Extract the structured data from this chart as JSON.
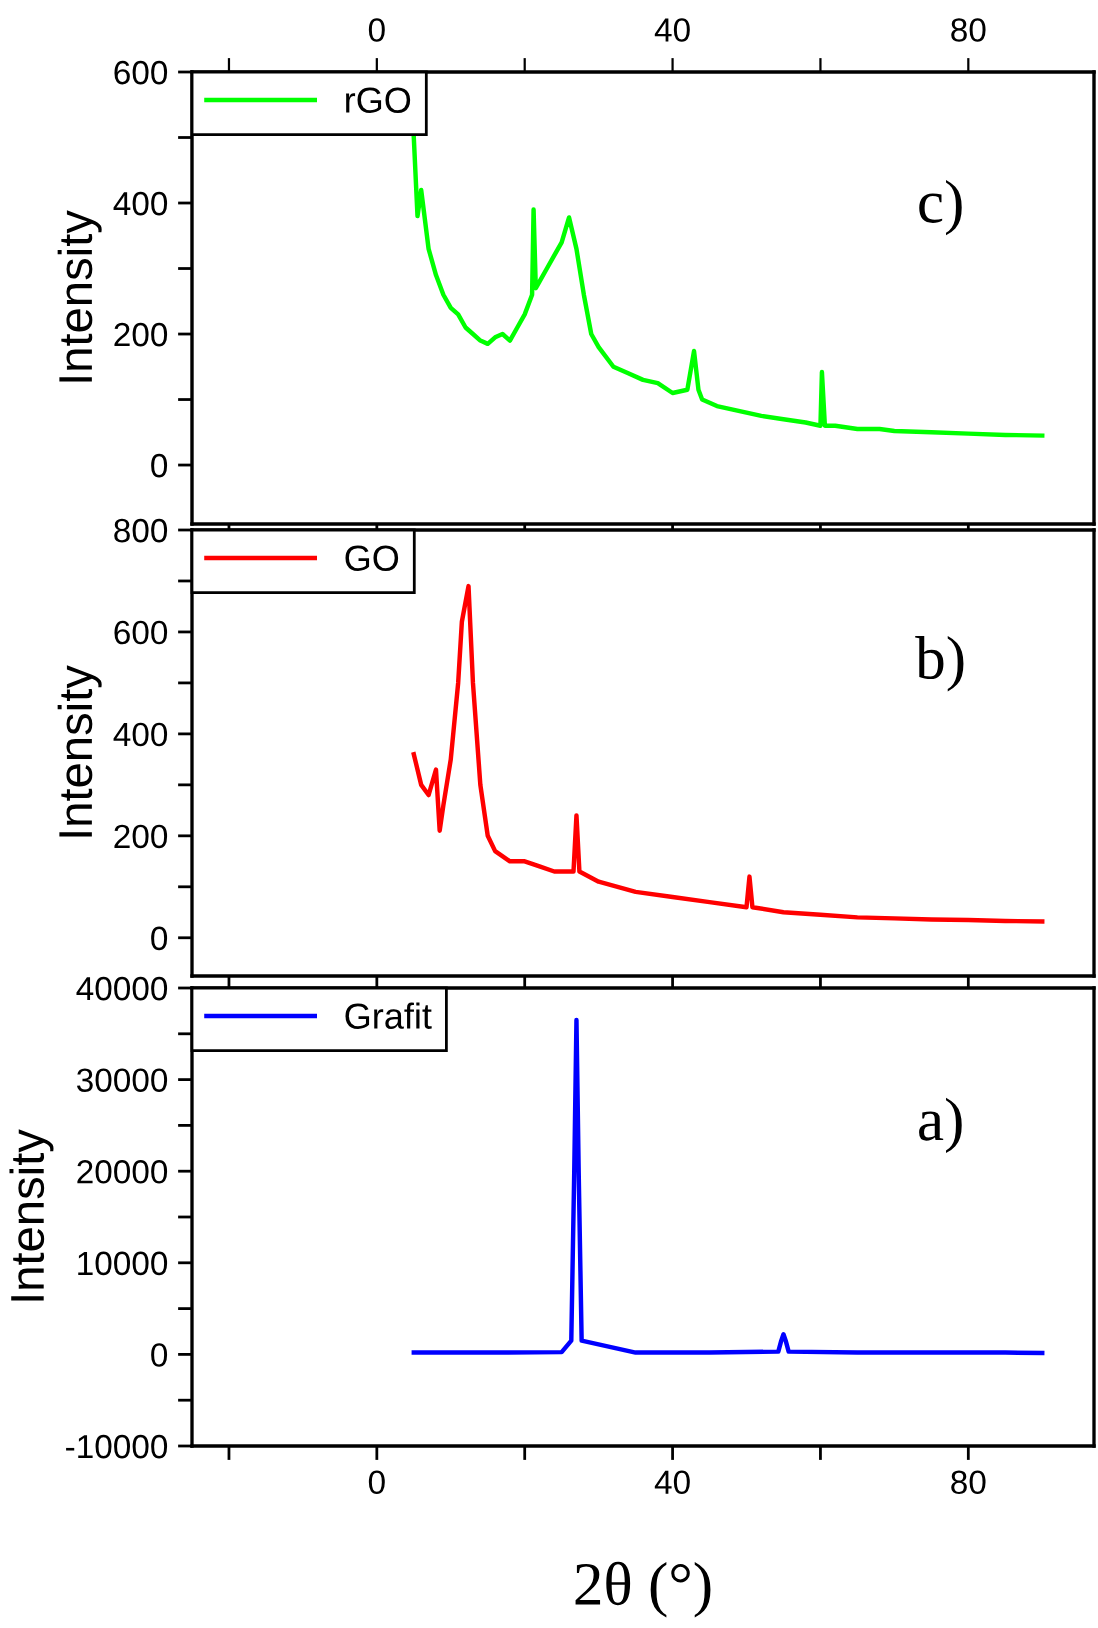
{
  "chart_data": [
    {
      "type": "line",
      "ylabel": "Intensity",
      "annotations": [
        "c)"
      ],
      "legend": "top left",
      "grid": false,
      "tick_labels": "y",
      "xlim": [
        -25,
        97
      ],
      "xticks": [
        {
          "value": -20,
          "label": null
        },
        0,
        {
          "value": 20,
          "label": null
        },
        40,
        {
          "value": 60,
          "label": null
        },
        80
      ],
      "x2lim": [
        -25,
        97
      ],
      "x2ticks": [
        {
          "value": -20,
          "label": null
        },
        0,
        {
          "value": 20,
          "label": null
        },
        40,
        {
          "value": 60,
          "label": null
        },
        80
      ],
      "ylim": [
        -90,
        600
      ],
      "yticks": [
        0,
        {
          "value": 100,
          "label": null
        },
        200,
        {
          "value": 300,
          "label": null
        },
        400,
        {
          "value": 500,
          "label": null
        },
        600
      ],
      "series": [
        {
          "name": "rGO",
          "color": "#00ff00",
          "x": [
            5,
            5.5,
            6,
            7,
            8,
            9,
            10,
            11,
            12,
            13,
            14,
            15,
            16,
            17,
            18,
            19,
            20,
            21,
            21.2,
            21.5,
            22,
            23,
            24,
            25,
            26,
            27,
            28,
            29,
            30,
            32,
            34,
            36,
            38,
            40,
            42,
            42.9,
            43.5,
            44,
            46,
            48,
            50,
            52,
            55,
            58,
            60,
            60.2,
            60.6,
            62,
            65,
            68,
            70,
            75,
            80,
            85,
            90
          ],
          "values": [
            500,
            380,
            420,
            330,
            290,
            260,
            240,
            230,
            210,
            200,
            190,
            185,
            195,
            200,
            190,
            210,
            230,
            260,
            390,
            270,
            280,
            300,
            320,
            340,
            378,
            330,
            260,
            200,
            180,
            150,
            140,
            130,
            125,
            110,
            115,
            174,
            115,
            100,
            90,
            85,
            80,
            75,
            70,
            65,
            60,
            142,
            60,
            60,
            55,
            55,
            52,
            50,
            48,
            46,
            45
          ]
        }
      ]
    },
    {
      "type": "line",
      "ylabel": "Intensity",
      "annotations": [
        "b)"
      ],
      "legend": "top left",
      "grid": false,
      "tick_labels": "y",
      "xlim": [
        -25,
        97
      ],
      "xticks": [
        {
          "value": -20,
          "label": null
        },
        0,
        {
          "value": 20,
          "label": null
        },
        40,
        {
          "value": 60,
          "label": null
        },
        80
      ],
      "ylim": [
        -75,
        800
      ],
      "yticks": [
        0,
        {
          "value": 100,
          "label": null
        },
        200,
        {
          "value": 300,
          "label": null
        },
        400,
        {
          "value": 500,
          "label": null
        },
        600,
        {
          "value": 700,
          "label": null
        },
        800
      ],
      "series": [
        {
          "name": "GO",
          "color": "#ff0000",
          "x": [
            5,
            6,
            7,
            8,
            8.5,
            9,
            10,
            11,
            11.5,
            12.4,
            13,
            14,
            15,
            16,
            18,
            20,
            22,
            24,
            26.6,
            27,
            27.4,
            30,
            35,
            40,
            45,
            50,
            50.4,
            50.8,
            55,
            60,
            65,
            70,
            75,
            80,
            85,
            90
          ],
          "values": [
            360,
            300,
            280,
            330,
            210,
            260,
            350,
            500,
            620,
            690,
            500,
            300,
            200,
            170,
            150,
            150,
            140,
            130,
            130,
            240,
            130,
            110,
            90,
            80,
            70,
            60,
            120,
            60,
            50,
            45,
            40,
            38,
            36,
            35,
            33,
            32
          ]
        }
      ]
    },
    {
      "type": "line",
      "ylabel": "Intensity",
      "xlabel": "2θ (°)",
      "annotations": [
        "a)"
      ],
      "legend": "top left",
      "grid": false,
      "xlim": [
        -25,
        97
      ],
      "xticks": [
        {
          "value": -20,
          "label": null
        },
        0,
        {
          "value": 20,
          "label": null
        },
        40,
        {
          "value": 60,
          "label": null
        },
        80
      ],
      "ylim": [
        -10000,
        40000
      ],
      "yticks": [
        -10000,
        {
          "value": -5000,
          "label": null
        },
        0,
        {
          "value": 5000,
          "label": null
        },
        10000,
        {
          "value": 15000,
          "label": null
        },
        20000,
        {
          "value": 25000,
          "label": null
        },
        30000,
        {
          "value": 35000,
          "label": null
        },
        40000
      ],
      "series": [
        {
          "name": "Grafit",
          "color": "#0000ff",
          "x": [
            5,
            15,
            25,
            26.3,
            26.7,
            27.0,
            27.3,
            27.7,
            35,
            45,
            54.3,
            54.7,
            55.0,
            55.3,
            55.7,
            65,
            75,
            85,
            90
          ],
          "values": [
            200,
            200,
            250,
            1500,
            20000,
            36500,
            20000,
            1500,
            200,
            200,
            300,
            1500,
            2200,
            1500,
            300,
            200,
            200,
            200,
            150
          ]
        }
      ]
    }
  ]
}
